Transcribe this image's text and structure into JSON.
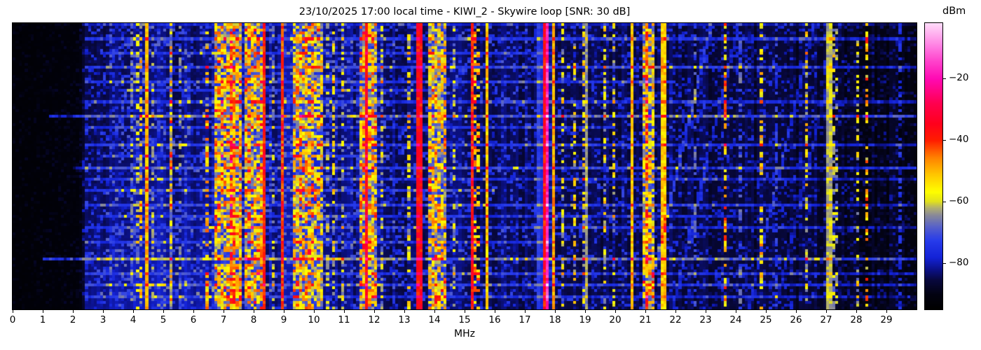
{
  "title": "23/10/2025 17:00 local time - KIWI_2 - Skywire loop [SNR: 30 dB]",
  "x_axis": {
    "label": "MHz",
    "ticks": [
      0,
      1,
      2,
      3,
      4,
      5,
      6,
      7,
      8,
      9,
      10,
      11,
      12,
      13,
      14,
      15,
      16,
      17,
      18,
      19,
      20,
      21,
      22,
      23,
      24,
      25,
      26,
      27,
      28,
      29
    ]
  },
  "colorbar": {
    "label": "dBm",
    "vmin": -95,
    "vmax": -2,
    "ticks": [
      {
        "label": "−20",
        "value": -20
      },
      {
        "label": "−40",
        "value": -40
      },
      {
        "label": "−60",
        "value": -60
      },
      {
        "label": "−80",
        "value": -80
      }
    ]
  },
  "chart_data": {
    "type": "heatmap",
    "title": "23/10/2025 17:00 local time - KIWI_2 - Skywire loop [SNR: 30 dB]",
    "xlabel": "MHz",
    "x_range": [
      0,
      30
    ],
    "value_range_dbm": [
      -95,
      -2
    ],
    "grid": false,
    "description": "HF waterfall spectrogram; intensity 0-1 maps linearly to -95..-2 dBm",
    "colormap_stops": [
      [
        0.0,
        0,
        0,
        0
      ],
      [
        0.05,
        3,
        3,
        18
      ],
      [
        0.1,
        8,
        8,
        60
      ],
      [
        0.14,
        12,
        18,
        140
      ],
      [
        0.18,
        20,
        35,
        215
      ],
      [
        0.24,
        40,
        60,
        235
      ],
      [
        0.29,
        90,
        100,
        200
      ],
      [
        0.33,
        140,
        140,
        150
      ],
      [
        0.355,
        180,
        178,
        110
      ],
      [
        0.376,
        225,
        225,
        30
      ],
      [
        0.41,
        255,
        255,
        0
      ],
      [
        0.47,
        255,
        200,
        0
      ],
      [
        0.53,
        255,
        130,
        0
      ],
      [
        0.59,
        255,
        30,
        0
      ],
      [
        0.65,
        255,
        0,
        30
      ],
      [
        0.72,
        255,
        0,
        80
      ],
      [
        0.806,
        255,
        10,
        180
      ],
      [
        0.87,
        255,
        70,
        205
      ],
      [
        0.914,
        255,
        120,
        225
      ],
      [
        1.0,
        255,
        220,
        250
      ]
    ],
    "noise_profile_format": "[freq_MHz, base_intensity, speckle_amplitude]",
    "noise_profile": [
      [
        0,
        0.015,
        0.05
      ],
      [
        2.2,
        0.025,
        0.06
      ],
      [
        2.45,
        0.1,
        0.15
      ],
      [
        3.0,
        0.11,
        0.17
      ],
      [
        4.0,
        0.12,
        0.18
      ],
      [
        6.5,
        0.12,
        0.18
      ],
      [
        8.0,
        0.13,
        0.18
      ],
      [
        12.5,
        0.12,
        0.17
      ],
      [
        15.0,
        0.11,
        0.16
      ],
      [
        18.5,
        0.105,
        0.15
      ],
      [
        23.0,
        0.09,
        0.13
      ],
      [
        26.5,
        0.08,
        0.12
      ],
      [
        28.3,
        0.055,
        0.1
      ],
      [
        30,
        0.045,
        0.09
      ]
    ],
    "bands_format": "[f_start_MHz, f_end_MHz, intensity_0to1, style 0=solid 1=dashed 2=patchy]",
    "bands": [
      [
        2.46,
        2.52,
        0.24,
        0
      ],
      [
        3.18,
        3.24,
        0.18,
        1
      ],
      [
        3.3,
        3.36,
        0.18,
        1
      ],
      [
        3.62,
        3.68,
        0.22,
        1
      ],
      [
        3.9,
        3.96,
        0.28,
        1
      ],
      [
        4.1,
        4.18,
        0.34,
        1
      ],
      [
        4.2,
        4.28,
        0.42,
        1
      ],
      [
        4.44,
        4.5,
        0.48,
        0
      ],
      [
        4.64,
        4.7,
        0.3,
        1
      ],
      [
        4.97,
        5.03,
        0.38,
        1
      ],
      [
        5.22,
        5.34,
        0.46,
        2
      ],
      [
        5.5,
        5.56,
        0.3,
        1
      ],
      [
        5.68,
        5.72,
        0.22,
        0
      ],
      [
        6.18,
        6.24,
        0.42,
        1
      ],
      [
        6.28,
        6.34,
        0.52,
        0
      ],
      [
        6.42,
        6.48,
        0.45,
        1
      ],
      [
        6.56,
        6.62,
        0.38,
        1
      ],
      [
        6.7,
        7.64,
        0.46,
        2
      ],
      [
        7.18,
        7.28,
        0.56,
        2
      ],
      [
        7.34,
        7.44,
        0.52,
        2
      ],
      [
        7.68,
        8.26,
        0.46,
        2
      ],
      [
        8.08,
        8.14,
        0.52,
        0
      ],
      [
        8.33,
        8.39,
        0.6,
        0
      ],
      [
        8.64,
        8.7,
        0.32,
        1
      ],
      [
        8.92,
        8.98,
        0.56,
        0
      ],
      [
        9.06,
        9.12,
        0.34,
        1
      ],
      [
        9.35,
        10.04,
        0.47,
        2
      ],
      [
        10.04,
        10.3,
        0.42,
        2
      ],
      [
        10.4,
        10.48,
        0.32,
        1
      ],
      [
        10.62,
        10.68,
        0.38,
        1
      ],
      [
        10.9,
        10.96,
        0.34,
        1
      ],
      [
        11.16,
        11.22,
        0.3,
        1
      ],
      [
        11.46,
        12.14,
        0.46,
        2
      ],
      [
        11.66,
        11.76,
        0.64,
        0
      ],
      [
        11.86,
        11.94,
        0.5,
        0
      ],
      [
        12.22,
        12.28,
        0.34,
        1
      ],
      [
        12.58,
        12.64,
        0.38,
        1
      ],
      [
        12.78,
        12.84,
        0.36,
        1
      ],
      [
        13.1,
        13.16,
        0.38,
        1
      ],
      [
        13.26,
        13.32,
        0.34,
        1
      ],
      [
        13.42,
        13.64,
        0.63,
        0
      ],
      [
        13.66,
        13.71,
        0.52,
        0
      ],
      [
        13.8,
        14.36,
        0.44,
        2
      ],
      [
        14.6,
        14.66,
        0.34,
        1
      ],
      [
        15.2,
        15.27,
        0.6,
        0
      ],
      [
        15.34,
        15.5,
        0.48,
        1
      ],
      [
        15.7,
        15.78,
        0.46,
        0
      ],
      [
        16.28,
        16.34,
        0.34,
        1
      ],
      [
        16.86,
        16.92,
        0.37,
        1
      ],
      [
        17.44,
        17.49,
        0.24,
        0
      ],
      [
        17.54,
        17.58,
        0.2,
        0
      ],
      [
        17.62,
        17.66,
        0.62,
        0
      ],
      [
        17.66,
        17.8,
        0.82,
        0
      ],
      [
        17.8,
        17.84,
        0.62,
        0
      ],
      [
        17.9,
        17.96,
        0.5,
        0
      ],
      [
        18.2,
        18.26,
        0.36,
        1
      ],
      [
        18.64,
        18.74,
        0.4,
        1
      ],
      [
        18.88,
        18.96,
        0.42,
        1
      ],
      [
        19.05,
        19.12,
        0.33,
        0
      ],
      [
        19.38,
        19.44,
        0.34,
        1
      ],
      [
        19.62,
        19.72,
        0.4,
        1
      ],
      [
        19.9,
        19.98,
        0.38,
        1
      ],
      [
        20.36,
        20.42,
        0.58,
        1
      ],
      [
        20.52,
        20.58,
        0.47,
        0
      ],
      [
        20.9,
        21.26,
        0.44,
        2
      ],
      [
        21.0,
        21.12,
        0.52,
        2
      ],
      [
        21.55,
        21.66,
        0.46,
        0
      ],
      [
        21.88,
        21.94,
        0.38,
        1
      ],
      [
        22.6,
        22.66,
        0.26,
        1
      ],
      [
        23.18,
        23.23,
        0.34,
        0
      ],
      [
        23.56,
        23.66,
        0.5,
        1
      ],
      [
        24.1,
        24.16,
        0.26,
        1
      ],
      [
        24.84,
        24.92,
        0.42,
        1
      ],
      [
        24.96,
        25.02,
        0.52,
        0
      ],
      [
        25.28,
        25.4,
        0.22,
        1
      ],
      [
        26.3,
        26.38,
        0.4,
        1
      ],
      [
        26.98,
        27.06,
        0.35,
        0
      ],
      [
        27.1,
        27.16,
        0.36,
        0
      ],
      [
        27.2,
        27.28,
        0.35,
        1
      ],
      [
        27.34,
        27.4,
        0.34,
        1
      ],
      [
        27.56,
        27.64,
        0.45,
        1
      ],
      [
        27.98,
        28.06,
        0.38,
        1
      ],
      [
        28.3,
        28.42,
        0.48,
        1
      ],
      [
        29.08,
        29.14,
        0.24,
        1
      ],
      [
        29.45,
        29.5,
        0.2,
        1
      ]
    ],
    "h_streaks_format": "[y_fraction_from_top, f_start_MHz, f_end_MHz, added_intensity]",
    "h_streaks": [
      [
        0.05,
        2.4,
        30,
        0.1
      ],
      [
        0.1,
        3.0,
        18,
        0.08
      ],
      [
        0.15,
        2.4,
        30,
        0.12
      ],
      [
        0.2,
        2.4,
        22,
        0.1
      ],
      [
        0.235,
        3.5,
        14,
        0.08
      ],
      [
        0.27,
        2.4,
        30,
        0.09
      ],
      [
        0.32,
        1.2,
        30,
        0.16
      ],
      [
        0.365,
        2.4,
        20,
        0.08
      ],
      [
        0.425,
        2.4,
        30,
        0.1
      ],
      [
        0.46,
        3.0,
        12.5,
        0.08
      ],
      [
        0.5,
        2.0,
        30,
        0.12
      ],
      [
        0.545,
        2.4,
        30,
        0.08
      ],
      [
        0.59,
        2.4,
        16,
        0.09
      ],
      [
        0.635,
        2.4,
        30,
        0.1
      ],
      [
        0.68,
        3.0,
        24,
        0.08
      ],
      [
        0.72,
        2.4,
        30,
        0.09
      ],
      [
        0.77,
        2.4,
        18,
        0.08
      ],
      [
        0.83,
        1.0,
        30,
        0.17
      ],
      [
        0.875,
        2.4,
        30,
        0.09
      ],
      [
        0.92,
        2.4,
        30,
        0.1
      ],
      [
        0.96,
        2.4,
        30,
        0.08
      ]
    ],
    "chirps_format": "[f_at_bottom_MHz, y_bottom_frac, f_at_top_MHz, y_top_frac, added_intensity]",
    "chirps": [
      [
        21.0,
        1.0,
        23.2,
        0.0,
        0.12
      ],
      [
        21.9,
        1.0,
        24.1,
        0.0,
        0.08
      ],
      [
        24.4,
        1.0,
        26.6,
        0.0,
        0.08
      ],
      [
        25.3,
        1.0,
        27.5,
        0.0,
        0.06
      ]
    ]
  }
}
